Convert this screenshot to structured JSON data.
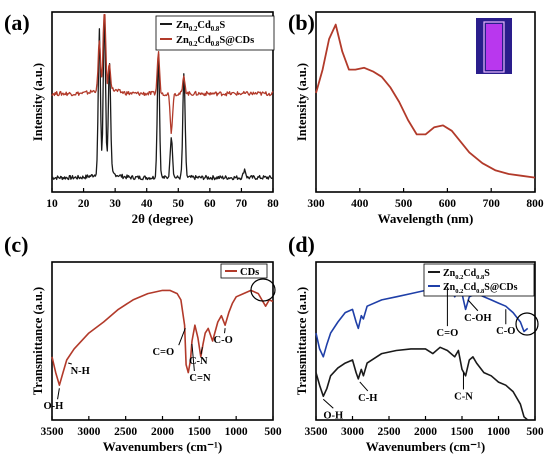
{
  "colors": {
    "black": "#1a1a1a",
    "red": "#b23a2a",
    "blue": "#1f3fa8",
    "cuvette_glow": "#d23cff",
    "cuvette_bg": "#2a1d8c"
  },
  "chart_data": [
    {
      "panel": "(a)",
      "type": "line",
      "xlabel": "2θ (degree)",
      "ylabel": "Intensity (a.u.)",
      "xlim": [
        10,
        80
      ],
      "xticks": [
        10,
        20,
        30,
        40,
        50,
        60,
        70,
        80
      ],
      "legend": {
        "position": "top-right"
      },
      "series": [
        {
          "name_main": "Zn",
          "name_sub1": "0.2",
          "name_mid": "Cd",
          "name_sub2": "0.8",
          "name_end": "S",
          "color": "#1a1a1a",
          "peaks": [
            [
              25.0,
              0.85
            ],
            [
              26.6,
              0.95
            ],
            [
              28.2,
              0.65
            ],
            [
              43.7,
              0.75
            ],
            [
              47.8,
              0.25
            ],
            [
              51.8,
              0.62
            ],
            [
              71,
              0.05
            ]
          ],
          "baseline": 0.05
        },
        {
          "name_main": "Zn",
          "name_sub1": "0.2",
          "name_mid": "Cd",
          "name_sub2": "0.8",
          "name_end": "S@CDs",
          "color": "#b23a2a",
          "peaks": [
            [
              25.0,
              0.75
            ],
            [
              26.6,
              1.0
            ],
            [
              28.2,
              0.6
            ],
            [
              43.7,
              0.7
            ],
            [
              47.8,
              0.22
            ],
            [
              51.8,
              0.55
            ]
          ],
          "baseline": 0.55
        }
      ]
    },
    {
      "panel": "(b)",
      "type": "line",
      "xlabel": "Wavelength (nm)",
      "ylabel": "Intensity (a.u.)",
      "xlim": [
        300,
        800
      ],
      "xticks": [
        300,
        400,
        500,
        600,
        700,
        800
      ],
      "series": [
        {
          "color": "#b23a2a",
          "x": [
            300,
            315,
            330,
            345,
            360,
            375,
            390,
            410,
            430,
            450,
            470,
            490,
            510,
            530,
            550,
            570,
            590,
            610,
            630,
            650,
            680,
            710,
            740,
            770,
            800
          ],
          "y": [
            0.55,
            0.68,
            0.85,
            0.93,
            0.78,
            0.68,
            0.68,
            0.69,
            0.67,
            0.64,
            0.58,
            0.5,
            0.4,
            0.32,
            0.32,
            0.36,
            0.37,
            0.34,
            0.28,
            0.22,
            0.16,
            0.12,
            0.1,
            0.09,
            0.08
          ]
        }
      ]
    },
    {
      "panel": "(c)",
      "type": "line",
      "xlabel": "Wavenumbers (cm⁻¹)",
      "ylabel": "Transmittance (a.u.)",
      "xlim": [
        3500,
        500
      ],
      "xticks": [
        3500,
        3000,
        2500,
        2000,
        1500,
        1000,
        500
      ],
      "legend": {
        "position": "top-right",
        "label": "CDs"
      },
      "series": [
        {
          "name": "CDs",
          "color": "#b23a2a",
          "x": [
            3500,
            3450,
            3400,
            3350,
            3300,
            3200,
            3000,
            2800,
            2600,
            2400,
            2200,
            2000,
            1900,
            1800,
            1750,
            1700,
            1680,
            1650,
            1620,
            1600,
            1560,
            1520,
            1480,
            1450,
            1420,
            1380,
            1320,
            1250,
            1200,
            1150,
            1100,
            1050,
            1000,
            900,
            800,
            700,
            650,
            600,
            550,
            500
          ],
          "y": [
            0.4,
            0.3,
            0.22,
            0.3,
            0.38,
            0.45,
            0.55,
            0.62,
            0.7,
            0.76,
            0.8,
            0.82,
            0.82,
            0.8,
            0.76,
            0.6,
            0.35,
            0.3,
            0.38,
            0.5,
            0.6,
            0.52,
            0.4,
            0.48,
            0.55,
            0.58,
            0.5,
            0.62,
            0.66,
            0.6,
            0.68,
            0.74,
            0.78,
            0.8,
            0.82,
            0.8,
            0.76,
            0.72,
            0.76,
            0.75
          ]
        }
      ],
      "annotations": [
        "O-H",
        "N-H",
        "C=O",
        "C=N",
        "C-N",
        "C-O"
      ]
    },
    {
      "panel": "(d)",
      "type": "line",
      "xlabel": "Wavenumbers (cm⁻¹)",
      "ylabel": "Transmittance (a.u.)",
      "xlim": [
        3500,
        500
      ],
      "xticks": [
        3500,
        3000,
        2500,
        2000,
        1500,
        1000,
        500
      ],
      "legend": {
        "position": "top-right"
      },
      "series": [
        {
          "name_main": "Zn",
          "name_sub1": "0.2",
          "name_mid": "Cd",
          "name_sub2": "0.8",
          "name_end": "S",
          "color": "#1a1a1a",
          "x": [
            3500,
            3450,
            3400,
            3350,
            3300,
            3200,
            3100,
            3000,
            2950,
            2920,
            2880,
            2850,
            2800,
            2600,
            2400,
            2200,
            2000,
            1900,
            1800,
            1700,
            1600,
            1550,
            1500,
            1450,
            1400,
            1350,
            1300,
            1200,
            1100,
            1000,
            900,
            800,
            700,
            650,
            600
          ],
          "y": [
            0.3,
            0.22,
            0.15,
            0.2,
            0.28,
            0.33,
            0.36,
            0.38,
            0.3,
            0.26,
            0.32,
            0.28,
            0.36,
            0.42,
            0.44,
            0.45,
            0.45,
            0.42,
            0.46,
            0.44,
            0.4,
            0.44,
            0.32,
            0.28,
            0.38,
            0.4,
            0.36,
            0.3,
            0.28,
            0.24,
            0.22,
            0.18,
            0.1,
            0.02,
            0.0
          ]
        },
        {
          "name_main": "Zn",
          "name_sub1": "0.2",
          "name_mid": "Cd",
          "name_sub2": "0.8",
          "name_end": "S@CDs",
          "color": "#1f3fa8",
          "x": [
            3500,
            3450,
            3400,
            3350,
            3300,
            3200,
            3100,
            3000,
            2950,
            2920,
            2880,
            2850,
            2800,
            2600,
            2400,
            2200,
            2000,
            1900,
            1800,
            1700,
            1650,
            1600,
            1550,
            1500,
            1450,
            1400,
            1300,
            1200,
            1100,
            1000,
            900,
            800,
            700,
            650,
            600
          ],
          "y": [
            0.55,
            0.45,
            0.4,
            0.48,
            0.55,
            0.62,
            0.68,
            0.7,
            0.62,
            0.58,
            0.66,
            0.64,
            0.72,
            0.76,
            0.78,
            0.8,
            0.82,
            0.84,
            0.86,
            0.86,
            0.84,
            0.78,
            0.82,
            0.8,
            0.7,
            0.78,
            0.8,
            0.78,
            0.76,
            0.74,
            0.72,
            0.68,
            0.62,
            0.56,
            0.58
          ]
        }
      ],
      "annotations": [
        "O-H",
        "C-H",
        "C=O",
        "C-N",
        "C-OH",
        "C-O"
      ]
    }
  ]
}
